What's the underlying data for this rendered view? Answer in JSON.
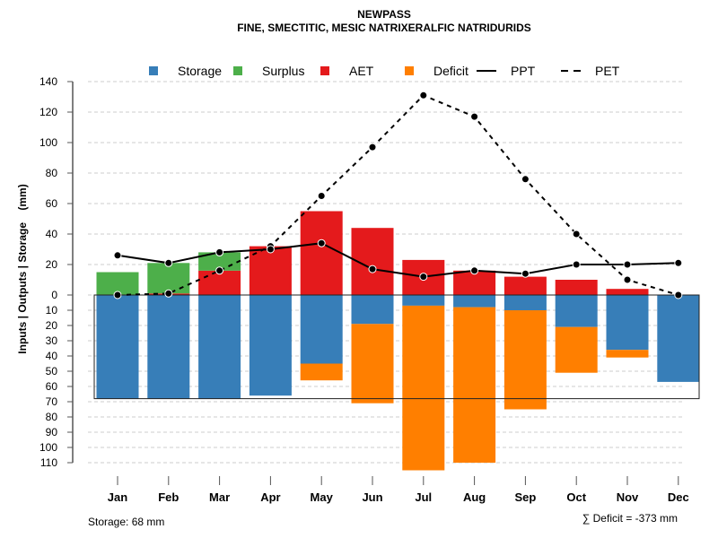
{
  "chart_data": {
    "type": "bar",
    "title": "NEWPASS",
    "subtitle": "FINE, SMECTITIC, MESIC NATRIXERALFIC NATRIDURIDS",
    "ylabel": "Inputs | Outputs | Storage    (mm)",
    "categories": [
      "Jan",
      "Feb",
      "Mar",
      "Apr",
      "May",
      "Jun",
      "Jul",
      "Aug",
      "Sep",
      "Oct",
      "Nov",
      "Dec"
    ],
    "ylim": [
      -110,
      140
    ],
    "yticks_up": [
      0,
      20,
      40,
      60,
      80,
      100,
      120,
      140
    ],
    "yticks_down": [
      10,
      20,
      30,
      40,
      50,
      60,
      70,
      80,
      90,
      100,
      110
    ],
    "grid": true,
    "legend_position": "top",
    "legend": [
      {
        "name": "Storage",
        "kind": "box",
        "color": "#377EB8"
      },
      {
        "name": "Surplus",
        "kind": "box",
        "color": "#4DAF4A"
      },
      {
        "name": "AET",
        "kind": "box",
        "color": "#E41A1C"
      },
      {
        "name": "Deficit",
        "kind": "box",
        "color": "#FF7F00"
      },
      {
        "name": "PPT",
        "kind": "solid"
      },
      {
        "name": "PET",
        "kind": "dashed"
      }
    ],
    "series": [
      {
        "name": "AET",
        "values": [
          0,
          1,
          16,
          32,
          55,
          44,
          23,
          16,
          12,
          10,
          4,
          0
        ]
      },
      {
        "name": "Surplus",
        "values": [
          15,
          20,
          12,
          0,
          0,
          0,
          0,
          0,
          0,
          0,
          0,
          0
        ]
      },
      {
        "name": "Storage",
        "values": [
          68,
          68,
          68,
          66,
          45,
          19,
          7,
          8,
          10,
          21,
          36,
          57
        ]
      },
      {
        "name": "Deficit",
        "values": [
          0,
          0,
          0,
          0,
          11,
          52,
          108,
          102,
          65,
          30,
          5,
          0
        ]
      },
      {
        "name": "PPT",
        "values": [
          26,
          21,
          28,
          30,
          34,
          17,
          12,
          16,
          14,
          20,
          20,
          21
        ]
      },
      {
        "name": "PET",
        "values": [
          0,
          1,
          16,
          32,
          65,
          97,
          131,
          117,
          76,
          40,
          10,
          0
        ]
      }
    ],
    "storage_capacity": 68,
    "annotations": {
      "storage": "Storage: 68 mm",
      "deficit": "∑ Deficit = -373 mm"
    }
  }
}
